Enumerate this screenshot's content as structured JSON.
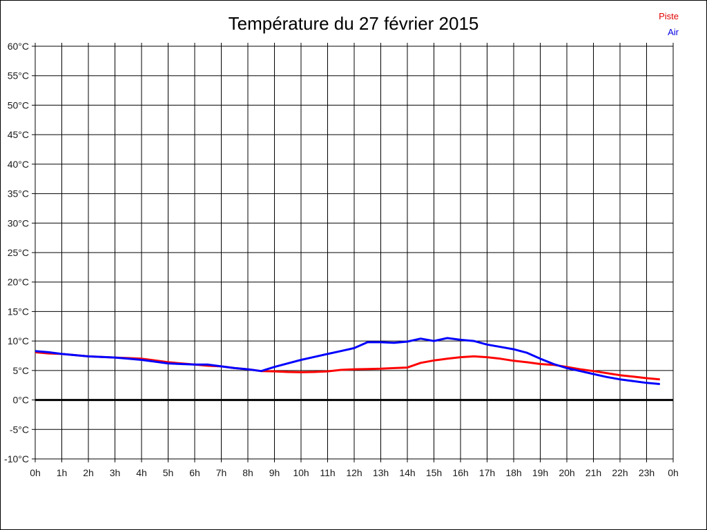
{
  "title": "Température du 27 février 2015",
  "legend": {
    "items": [
      {
        "label": "Piste",
        "color": "#e00000"
      },
      {
        "label": "Air",
        "color": "#0000e0"
      }
    ]
  },
  "chart_data": {
    "type": "line",
    "title": "Température du 27 février 2015",
    "xlabel": "",
    "ylabel": "",
    "xlim": [
      0,
      24
    ],
    "ylim": [
      -10,
      60
    ],
    "ytick_step": 5,
    "grid": true,
    "grid_color": "#000000",
    "legend_position": "top-right",
    "zero_line": {
      "value": 0,
      "width": 3,
      "color": "#000000"
    },
    "xtick_labels": [
      "0h",
      "1h",
      "2h",
      "3h",
      "4h",
      "5h",
      "6h",
      "7h",
      "8h",
      "9h",
      "10h",
      "11h",
      "12h",
      "13h",
      "14h",
      "15h",
      "16h",
      "17h",
      "18h",
      "19h",
      "20h",
      "21h",
      "22h",
      "23h",
      "0h"
    ],
    "ytick_labels": [
      "60°C",
      "55°C",
      "50°C",
      "45°C",
      "40°C",
      "35°C",
      "30°C",
      "25°C",
      "20°C",
      "15°C",
      "10°C",
      "5°C",
      "0°C",
      "-5°C",
      "-10°C"
    ],
    "ytick_values": [
      60,
      55,
      50,
      45,
      40,
      35,
      30,
      25,
      20,
      15,
      10,
      5,
      0,
      -5,
      -10
    ],
    "x": [
      0,
      0.5,
      1,
      1.5,
      2,
      2.5,
      3,
      3.5,
      4,
      4.5,
      5,
      5.5,
      6,
      6.5,
      7,
      7.5,
      8,
      8.5,
      9,
      9.5,
      10,
      10.5,
      11,
      11.5,
      12,
      12.5,
      13,
      13.5,
      14,
      14.5,
      15,
      15.5,
      16,
      16.5,
      17,
      17.5,
      18,
      18.5,
      19,
      19.5,
      20,
      20.5,
      21,
      21.5,
      22,
      22.5,
      23,
      23.5
    ],
    "series": [
      {
        "name": "Piste",
        "color": "#ff0000",
        "values": [
          8.1,
          7.9,
          7.8,
          7.6,
          7.4,
          7.3,
          7.2,
          7.1,
          7.0,
          6.7,
          6.4,
          6.2,
          6.0,
          5.8,
          5.7,
          5.4,
          5.2,
          4.9,
          4.85,
          4.75,
          4.7,
          4.75,
          4.85,
          5.1,
          5.2,
          5.25,
          5.3,
          5.4,
          5.5,
          6.3,
          6.7,
          7.0,
          7.25,
          7.4,
          7.25,
          7.0,
          6.65,
          6.4,
          6.1,
          5.95,
          5.6,
          5.2,
          4.9,
          4.55,
          4.2,
          3.95,
          3.7,
          3.5
        ]
      },
      {
        "name": "Air",
        "color": "#0000ff",
        "values": [
          8.3,
          8.1,
          7.8,
          7.6,
          7.4,
          7.3,
          7.2,
          7.0,
          6.8,
          6.5,
          6.2,
          6.1,
          6.0,
          6.0,
          5.7,
          5.4,
          5.2,
          4.9,
          5.6,
          6.2,
          6.8,
          7.3,
          7.8,
          8.3,
          8.8,
          9.8,
          9.8,
          9.7,
          9.9,
          10.4,
          10.0,
          10.5,
          10.2,
          10.0,
          9.4,
          9.0,
          8.6,
          8.0,
          7.0,
          6.1,
          5.4,
          4.9,
          4.4,
          3.9,
          3.5,
          3.2,
          2.9,
          2.7
        ]
      }
    ]
  }
}
